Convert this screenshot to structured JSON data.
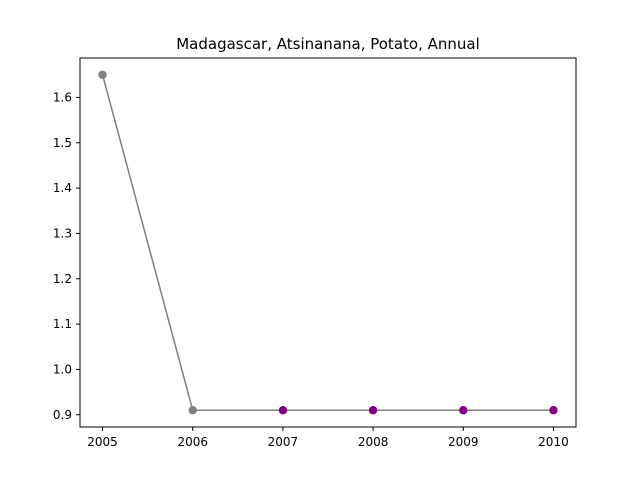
{
  "chart_data": {
    "type": "line",
    "title": "Madagascar, Atsinanana, Potato, Annual",
    "xlabel": "",
    "ylabel": "",
    "x": [
      2005,
      2006,
      2007,
      2008,
      2009,
      2010
    ],
    "series": [
      {
        "values": [
          1.65,
          0.91,
          0.91,
          0.91,
          0.91,
          0.91
        ],
        "line_color": "#808080",
        "point_colors": [
          "#808080",
          "#808080",
          "#800080",
          "#800080",
          "#800080",
          "#800080"
        ]
      }
    ],
    "x_ticks": [
      "2005",
      "2006",
      "2007",
      "2008",
      "2009",
      "2010"
    ],
    "y_ticks": [
      "0.9",
      "1.0",
      "1.1",
      "1.2",
      "1.3",
      "1.4",
      "1.5",
      "1.6"
    ],
    "xlim": [
      2004.75,
      2010.25
    ],
    "ylim": [
      0.873,
      1.687
    ],
    "grid": false,
    "legend": "none"
  }
}
